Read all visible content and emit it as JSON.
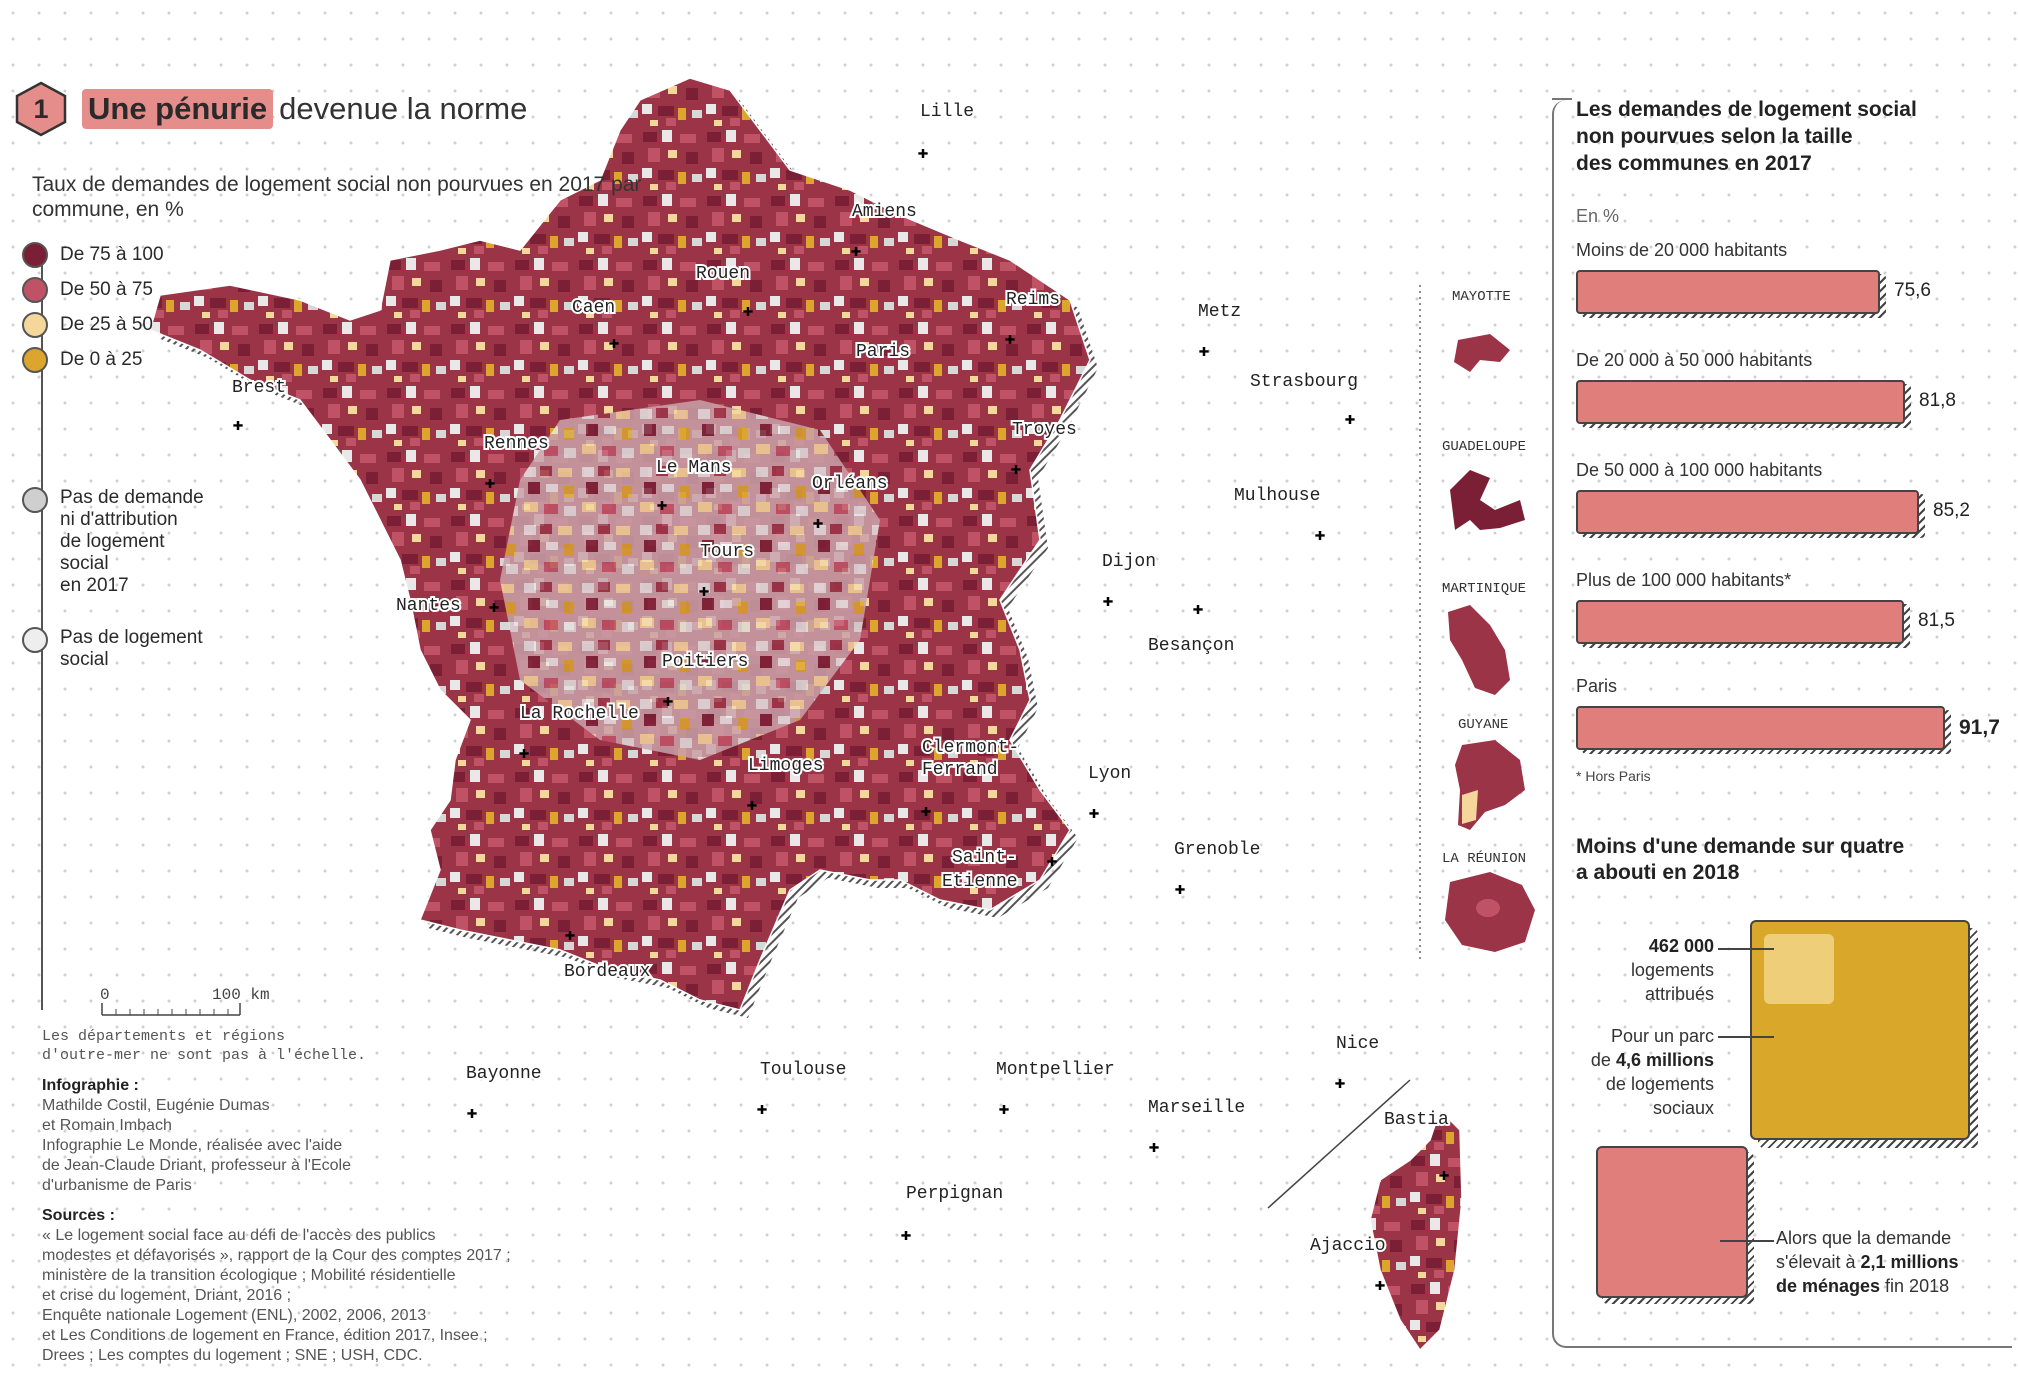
{
  "title": {
    "number": "1",
    "highlight": "Une pénurie",
    "rest": "devenue la norme"
  },
  "legend": {
    "title": "Taux de demandes de logement social non pourvues en 2017 par commune, en %",
    "classes": [
      {
        "label": "De 75 à 100",
        "color": "#7a1f35"
      },
      {
        "label": "De 50 à 75",
        "color": "#c05266"
      },
      {
        "label": "De 25 à 50",
        "color": "#f5d79c"
      },
      {
        "label": "De 0 à 25",
        "color": "#dca62e"
      }
    ],
    "no_demand": {
      "line1": "Pas de demande",
      "line2": "ni d'attribution",
      "line3": "de logement",
      "line4": "social",
      "line5": "en 2017",
      "color": "#cfcfcf"
    },
    "no_housing": {
      "line1": "Pas de logement",
      "line2": "social",
      "color": "#eeeeee"
    }
  },
  "scale": {
    "start": "0",
    "end": "100 km"
  },
  "note": {
    "line1": "Les départements et régions",
    "line2": "d'outre-mer ne sont pas à l'échelle."
  },
  "credits": {
    "infographie_label": "Infographie :",
    "lines": [
      "Mathilde Costil, Eugénie Dumas",
      "et Romain Imbach",
      "Infographie Le Monde, réalisée avec l'aide",
      "de Jean-Claude Driant, professeur à l'Ecole",
      "d'urbanisme de Paris"
    ],
    "sources_label": "Sources :",
    "sources": [
      "« Le logement social face au défi de l'accès des publics",
      "modestes et défavorisés », rapport de la Cour des comptes 2017 ;",
      "ministère de la transition écologique ; Mobilité résidentielle",
      "et crise du logement, Driant, 2016 ;",
      "Enquête nationale Logement (ENL), 2002, 2006, 2013",
      "et Les Conditions de logement en France, édition 2017, Insee ;",
      "Drees ; Les comptes du logement ; SNE ; USH, CDC."
    ]
  },
  "cities": {
    "lille": "Lille",
    "amiens": "Amiens",
    "rouen": "Rouen",
    "caen": "Caen",
    "reims": "Reims",
    "metz": "Metz",
    "paris": "Paris",
    "strasbourg": "Strasbourg",
    "brest": "Brest",
    "rennes": "Rennes",
    "le_mans": "Le Mans",
    "troyes": "Troyes",
    "orleans": "Orléans",
    "mulhouse": "Mulhouse",
    "tours": "Tours",
    "dijon": "Dijon",
    "nantes": "Nantes",
    "besancon": "Besançon",
    "poitiers": "Poitiers",
    "la_rochelle": "La Rochelle",
    "limoges": "Limoges",
    "clermont1": "Clermont-",
    "clermont2": "Ferrand",
    "lyon": "Lyon",
    "saint1": "Saint-",
    "saint2": "Etienne",
    "grenoble": "Grenoble",
    "bordeaux": "Bordeaux",
    "nice": "Nice",
    "bayonne": "Bayonne",
    "toulouse": "Toulouse",
    "montpellier": "Montpellier",
    "marseille": "Marseille",
    "bastia": "Bastia",
    "perpignan": "Perpignan",
    "ajaccio": "Ajaccio"
  },
  "overseas": {
    "mayotte": "MAYOTTE",
    "guadeloupe": "GUADELOUPE",
    "martinique": "MARTINIQUE",
    "guyane": "GUYANE",
    "reunion": "LA RÉUNION"
  },
  "panel": {
    "bars_title": {
      "line1": "Les demandes de logement social",
      "line2": "non pourvues selon la taille",
      "line3": "des communes en 2017"
    },
    "unit": "En %",
    "footnote": "* Hors Paris",
    "squares_title": {
      "line1": "Moins d'une demande sur quatre",
      "line2": "a abouti en 2018"
    },
    "attributed": {
      "value": "462 000",
      "line2": "logements",
      "line3": "attribués"
    },
    "stock": {
      "line1": "Pour un parc",
      "pre": "de ",
      "bold": "4,6 millions",
      "line3": "de logements",
      "line4": "sociaux"
    },
    "demand": {
      "line1": "Alors que la demande",
      "pre": "s'élevait à ",
      "bold1": "2,1 millions",
      "bold2": "de ménages",
      "post": " fin 2018"
    }
  },
  "chart_data": {
    "type": "bar",
    "categories": [
      "Moins de 20 000 habitants",
      "De 20 000 à 50 000 habitants",
      "De 50 000 à 100 000 habitants",
      "Plus de 100 000 habitants*",
      "Paris"
    ],
    "values": [
      75.6,
      81.8,
      85.2,
      81.5,
      91.7
    ],
    "value_labels": [
      "75,6",
      "81,8",
      "85,2",
      "81,5",
      "91,7"
    ],
    "bar_color": "#e07e7c"
  },
  "squares_data": {
    "attributed_housing": 462000,
    "social_housing_stock_millions": 4.6,
    "demand_households_millions": 2.1
  }
}
